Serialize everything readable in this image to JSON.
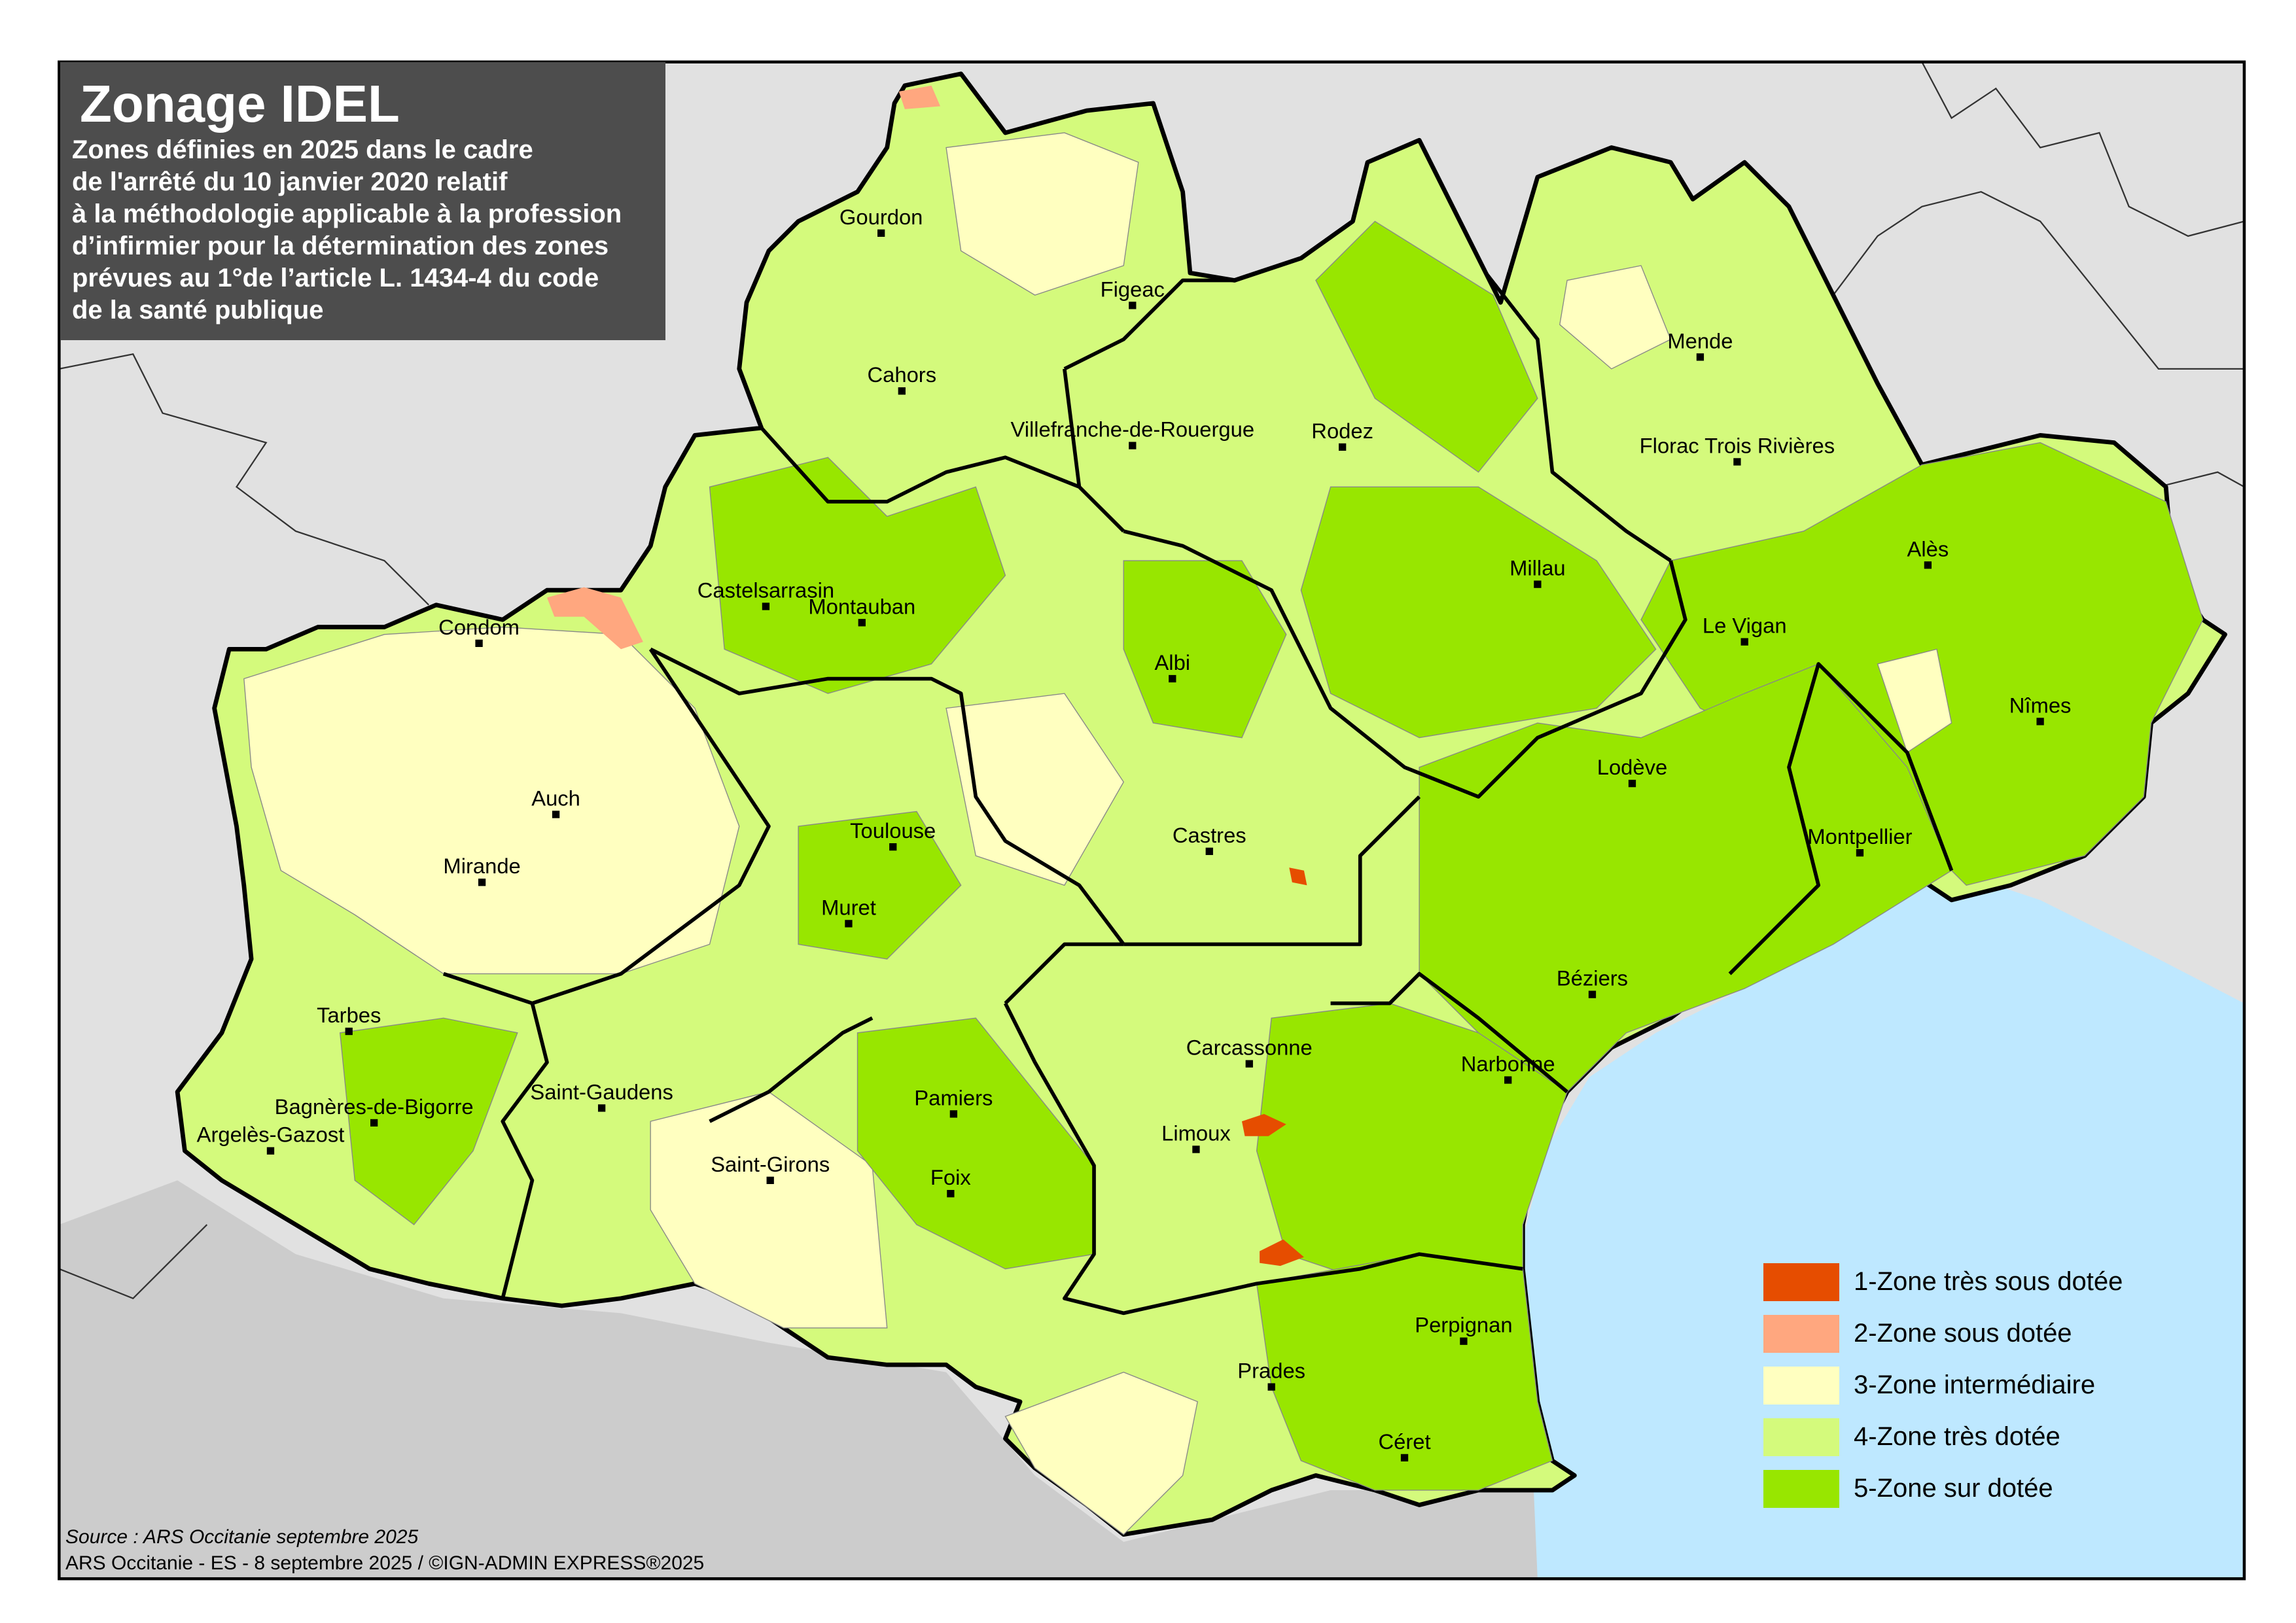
{
  "title": "Zonage IDEL",
  "subtitle": "Zones définies en 2025 dans le cadre\nde l'arrêté du 10 janvier 2020 relatif\nà la méthodologie applicable à la profession\nd’infirmier pour la détermination des zones\nprévues au 1°de l’article L. 1434-4 du code\nde la santé publique",
  "legend": [
    {
      "label": "1-Zone très sous dotée",
      "color": "#e64d00"
    },
    {
      "label": "2-Zone sous dotée",
      "color": "#ffa77f"
    },
    {
      "label": "3-Zone intermédiaire",
      "color": "#ffffc0"
    },
    {
      "label": "4-Zone très dotée",
      "color": "#d4fa7c"
    },
    {
      "label": "5-Zone sur dotée",
      "color": "#98e600"
    }
  ],
  "colors": {
    "sea": "#bee8ff",
    "neighbour_land": "#e1e1e1",
    "spain": "#cccccc",
    "title_box": "#4d4d4d"
  },
  "cities": [
    "Gourdon",
    "Figeac",
    "Cahors",
    "Mende",
    "Villefranche-de-Rouergue",
    "Rodez",
    "Florac Trois Rivières",
    "Millau",
    "Alès",
    "Castelsarrasin",
    "Montauban",
    "Condom",
    "Le Vigan",
    "Albi",
    "Nîmes",
    "Lodève",
    "Auch",
    "Toulouse",
    "Castres",
    "Montpellier",
    "Mirande",
    "Muret",
    "Béziers",
    "Tarbes",
    "Carcassonne",
    "Narbonne",
    "Saint-Gaudens",
    "Pamiers",
    "Bagnères-de-Bigorre",
    "Argelès-Gazost",
    "Limoux",
    "Saint-Girons",
    "Foix",
    "Perpignan",
    "Prades",
    "Céret"
  ],
  "footer": {
    "source": "Source : ARS Occitanie septembre 2025",
    "credit": "ARS Occitanie - ES - 8 septembre 2025 / ©IGN-ADMIN EXPRESS®2025"
  }
}
